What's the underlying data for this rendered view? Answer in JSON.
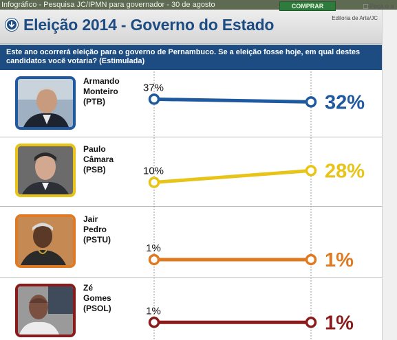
{
  "window": {
    "title": "Infográfico - Pesquisa JC/IPMN para governador - 30 de agosto",
    "buy_label": "COMPRAR",
    "side_link": "Peça o a"
  },
  "header": {
    "title": "Eleição 2014 - Governo do Estado",
    "credit": "Editoria de Arte/JC"
  },
  "question": "Este ano ocorrerá eleição para o governo de Pernambuco. Se a eleição fosse hoje, em qual destes candidatos você votaria? (Estimulada)",
  "candidates": [
    {
      "name_line1": "Armando",
      "name_line2": "Monteiro",
      "party": "(PTB)"
    },
    {
      "name_line1": "Paulo",
      "name_line2": "Câmara",
      "party": "(PSB)"
    },
    {
      "name_line1": "Jair",
      "name_line2": "Pedro",
      "party": "(PSTU)"
    },
    {
      "name_line1": "Zé",
      "name_line2": "Gomes",
      "party": "(PSOL)"
    }
  ],
  "chart_data": {
    "type": "line",
    "title": "Eleição 2014 - Governo do Estado",
    "subtitle": "Este ano ocorrerá eleição para o governo de Pernambuco. Se a eleição fosse hoje, em qual destes candidatos você votaria? (Estimulada)",
    "unit": "%",
    "grid": false,
    "series": [
      {
        "name": "Armando Monteiro (PTB)",
        "color": "#1f5aa0",
        "values": [
          37,
          32
        ],
        "labels": [
          "37%",
          "32%"
        ]
      },
      {
        "name": "Paulo Câmara (PSB)",
        "color": "#e8c418",
        "values": [
          10,
          28
        ],
        "labels": [
          "10%",
          "28%"
        ]
      },
      {
        "name": "Jair Pedro (PSTU)",
        "color": "#e07a22",
        "values": [
          1,
          1
        ],
        "labels": [
          "1%",
          "1%"
        ]
      },
      {
        "name": "Zé Gomes (PSOL)",
        "color": "#8b1a1a",
        "values": [
          1,
          1
        ],
        "labels": [
          "1%",
          "1%"
        ]
      }
    ],
    "photo_border_colors": [
      "#1f5aa0",
      "#e8c418",
      "#e07a22",
      "#8b1a1a"
    ]
  }
}
